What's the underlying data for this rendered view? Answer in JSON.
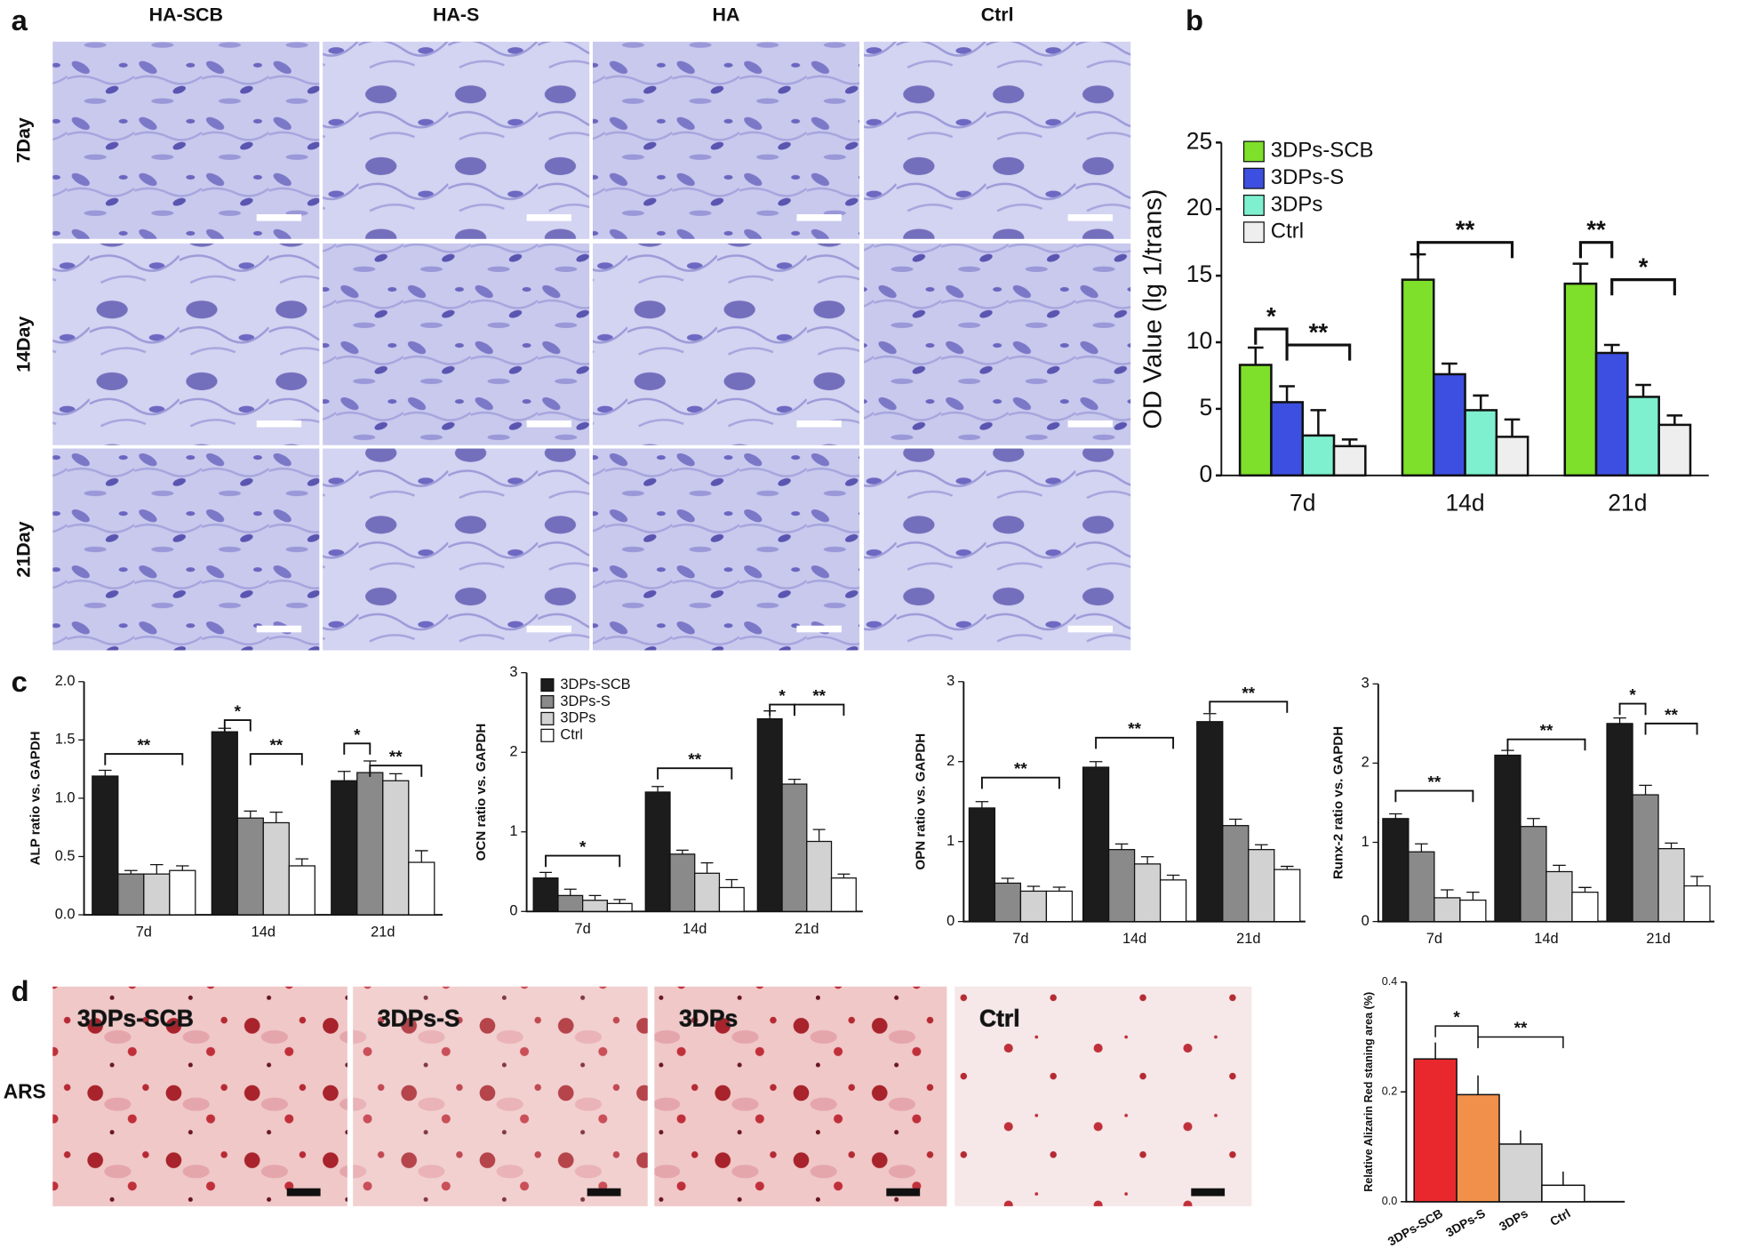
{
  "figure": {
    "panel_labels": [
      "a",
      "b",
      "c",
      "d"
    ],
    "columns": [
      "HA-SCB",
      "HA-S",
      "HA",
      "Ctrl"
    ],
    "rows": [
      "7Day",
      "14Day",
      "21Day"
    ],
    "ars_label": "ARS",
    "ars_images": [
      "3DPs-SCB",
      "3DPs-S",
      "3DPs",
      "Ctrl"
    ]
  },
  "chart_data": [
    {
      "type": "grouped-bar",
      "ylabel": "OD Value (lg 1/trans)",
      "categories": [
        "7d",
        "14d",
        "21d"
      ],
      "series": [
        {
          "name": "3DPs-SCB",
          "color": "#7ee02a",
          "values": [
            8.3,
            14.7,
            14.4
          ],
          "errors": [
            1.3,
            1.9,
            1.5
          ]
        },
        {
          "name": "3DPs-S",
          "color": "#3d4fe0",
          "values": [
            5.5,
            7.6,
            9.2
          ],
          "errors": [
            1.2,
            0.8,
            0.6
          ]
        },
        {
          "name": "3DPs",
          "color": "#7ef0d0",
          "values": [
            3.0,
            4.9,
            5.9
          ],
          "errors": [
            1.9,
            1.1,
            0.9
          ]
        },
        {
          "name": "Ctrl",
          "color": "#eeeeee",
          "values": [
            2.2,
            2.9,
            3.8
          ],
          "errors": [
            0.5,
            1.3,
            0.7
          ]
        }
      ],
      "ylim": [
        0,
        25
      ],
      "yticks": [
        0,
        5,
        10,
        15,
        20,
        25
      ],
      "grid": false,
      "legend": "upper left",
      "annotation_color": "#7ee02a",
      "annotations": [
        "*",
        "**",
        "**",
        "**",
        "*"
      ]
    },
    {
      "type": "grouped-bar",
      "ylabel": "ALP ratio vs. GAPDH",
      "categories": [
        "7d",
        "14d",
        "21d"
      ],
      "series": [
        {
          "color": "#1c1c1c",
          "values": [
            1.19,
            1.57,
            1.15
          ],
          "errors": [
            0.05,
            0.03,
            0.08
          ]
        },
        {
          "color": "#8a8a8a",
          "values": [
            0.35,
            0.83,
            1.22
          ],
          "errors": [
            0.03,
            0.06,
            0.1
          ]
        },
        {
          "color": "#d2d2d2",
          "values": [
            0.35,
            0.79,
            1.15
          ],
          "errors": [
            0.08,
            0.09,
            0.06
          ]
        },
        {
          "color": "#ffffff",
          "values": [
            0.38,
            0.42,
            0.45
          ],
          "errors": [
            0.04,
            0.06,
            0.1
          ]
        }
      ],
      "ylim": [
        0,
        2
      ],
      "yticks": [
        {
          "value": 0,
          "label": "0.0"
        },
        0.5,
        {
          "value": 1,
          "label": "1.0"
        },
        1.5,
        {
          "value": 2,
          "label": "2.0"
        }
      ],
      "grid": false,
      "annotation_color": "#111111",
      "annotations": [
        "**",
        "*",
        "**",
        "*",
        "**"
      ]
    },
    {
      "type": "grouped-bar",
      "ylabel": "OCN ratio vs. GAPDH",
      "categories": [
        "7d",
        "14d",
        "21d"
      ],
      "series": [
        {
          "name": "3DPs-SCB",
          "color": "#1c1c1c",
          "values": [
            0.42,
            1.5,
            2.42
          ],
          "errors": [
            0.07,
            0.07,
            0.1
          ]
        },
        {
          "name": "3DPs-S",
          "color": "#8a8a8a",
          "values": [
            0.2,
            0.72,
            1.6
          ],
          "errors": [
            0.08,
            0.05,
            0.06
          ]
        },
        {
          "name": "3DPs",
          "color": "#d2d2d2",
          "values": [
            0.14,
            0.48,
            0.88
          ],
          "errors": [
            0.06,
            0.13,
            0.15
          ]
        },
        {
          "name": "Ctrl",
          "color": "#ffffff",
          "values": [
            0.1,
            0.3,
            0.42
          ],
          "errors": [
            0.05,
            0.1,
            0.05
          ]
        }
      ],
      "ylim": [
        0,
        3
      ],
      "yticks": [
        0,
        1,
        2,
        3
      ],
      "grid": false,
      "legend": "upper left",
      "annotation_color": "#111111",
      "annotations": [
        "*",
        "**",
        "*",
        "**"
      ]
    },
    {
      "type": "grouped-bar",
      "ylabel": "OPN ratio vs. GAPDH",
      "categories": [
        "7d",
        "14d",
        "21d"
      ],
      "series": [
        {
          "color": "#1c1c1c",
          "values": [
            1.42,
            1.93,
            2.5
          ],
          "errors": [
            0.08,
            0.07,
            0.1
          ]
        },
        {
          "color": "#8a8a8a",
          "values": [
            0.48,
            0.9,
            1.2
          ],
          "errors": [
            0.06,
            0.07,
            0.08
          ]
        },
        {
          "color": "#d2d2d2",
          "values": [
            0.38,
            0.72,
            0.9
          ],
          "errors": [
            0.06,
            0.09,
            0.06
          ]
        },
        {
          "color": "#ffffff",
          "values": [
            0.38,
            0.52,
            0.65
          ],
          "errors": [
            0.05,
            0.06,
            0.04
          ]
        }
      ],
      "ylim": [
        0,
        3
      ],
      "yticks": [
        0,
        1,
        2,
        3
      ],
      "grid": false,
      "annotation_color": "#111111",
      "annotations": [
        "**",
        "**",
        "**"
      ]
    },
    {
      "type": "grouped-bar",
      "ylabel": "Runx-2 ratio vs. GAPDH",
      "categories": [
        "7d",
        "14d",
        "21d"
      ],
      "series": [
        {
          "color": "#1c1c1c",
          "values": [
            1.3,
            2.1,
            2.5
          ],
          "errors": [
            0.06,
            0.06,
            0.07
          ]
        },
        {
          "color": "#8a8a8a",
          "values": [
            0.88,
            1.2,
            1.6
          ],
          "errors": [
            0.1,
            0.1,
            0.12
          ]
        },
        {
          "color": "#d2d2d2",
          "values": [
            0.3,
            0.63,
            0.92
          ],
          "errors": [
            0.1,
            0.08,
            0.07
          ]
        },
        {
          "color": "#ffffff",
          "values": [
            0.27,
            0.37,
            0.45
          ],
          "errors": [
            0.1,
            0.06,
            0.12
          ]
        }
      ],
      "ylim": [
        0,
        3
      ],
      "yticks": [
        0,
        1,
        2,
        3
      ],
      "grid": false,
      "annotation_color": "#111111",
      "annotations": [
        "**",
        "**",
        "*",
        "**"
      ]
    },
    {
      "type": "bar",
      "ylabel": "Relative Alizarin Red staning area (%)",
      "categories": [
        "3DPs-SCB",
        "3DPs-S",
        "3DPs",
        "Ctrl"
      ],
      "values": [
        0.26,
        0.195,
        0.105,
        0.03
      ],
      "errors": [
        0.03,
        0.035,
        0.025,
        0.025
      ],
      "colors": [
        "#e8282d",
        "#f0904a",
        "#d4d4d4",
        "#ffffff"
      ],
      "ylim": [
        0,
        0.4
      ],
      "yticks": [
        {
          "value": 0,
          "label": "0.0"
        },
        0.2,
        0.4
      ],
      "grid": false,
      "annotation_color": "#e8282d",
      "annotations": [
        "*",
        "**"
      ]
    }
  ]
}
